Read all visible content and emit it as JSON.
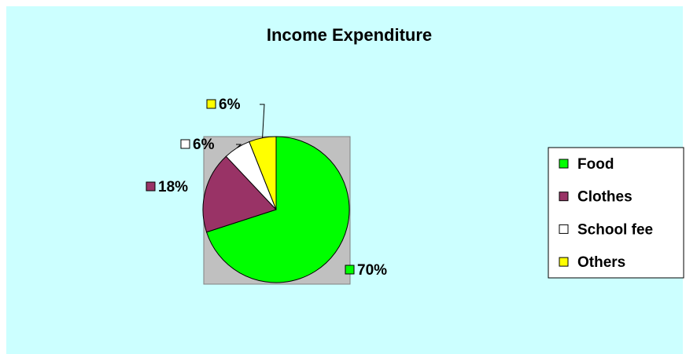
{
  "chart_data": {
    "type": "pie",
    "title": "Income Expenditure",
    "categories": [
      "Food",
      "Clothes",
      "School fee",
      "Others"
    ],
    "values": [
      70,
      18,
      6,
      6
    ],
    "value_labels": [
      "70%",
      "18%",
      "6%",
      "6%"
    ],
    "colors": [
      "#00ff00",
      "#993366",
      "#ffffff",
      "#ffff00"
    ],
    "legend": "right"
  }
}
